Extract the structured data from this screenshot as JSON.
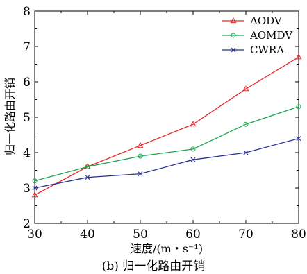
{
  "chart_data": {
    "type": "line",
    "x": [
      30,
      40,
      50,
      60,
      70,
      80
    ],
    "xlim": [
      30,
      80
    ],
    "ylim": [
      2,
      8
    ],
    "xticks": [
      "30",
      "40",
      "50",
      "60",
      "70",
      "80"
    ],
    "yticks": [
      "2",
      "3",
      "4",
      "5",
      "6",
      "7",
      "8"
    ],
    "xlabel": "速度/(m・s⁻¹)",
    "ylabel": "归一化路由开销",
    "grid": false,
    "legend_position": "top-right",
    "series": [
      {
        "name": "AODV",
        "color": "#e8262b",
        "marker": "triangle",
        "values": [
          2.8,
          3.6,
          4.2,
          4.8,
          5.8,
          6.7
        ]
      },
      {
        "name": "AOMDV",
        "color": "#1aa650",
        "marker": "circle",
        "values": [
          3.2,
          3.6,
          3.9,
          4.1,
          4.8,
          5.3
        ]
      },
      {
        "name": "CWRA",
        "color": "#2b2f8f",
        "marker": "x",
        "values": [
          3.0,
          3.3,
          3.4,
          3.8,
          4.0,
          4.4
        ]
      }
    ]
  },
  "caption": "(b) 归一化路由开销"
}
